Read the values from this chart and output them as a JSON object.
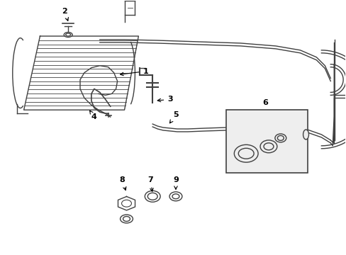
{
  "bg_color": "#ffffff",
  "line_color": "#404040",
  "figsize": [
    4.89,
    3.6
  ],
  "dpi": 100
}
